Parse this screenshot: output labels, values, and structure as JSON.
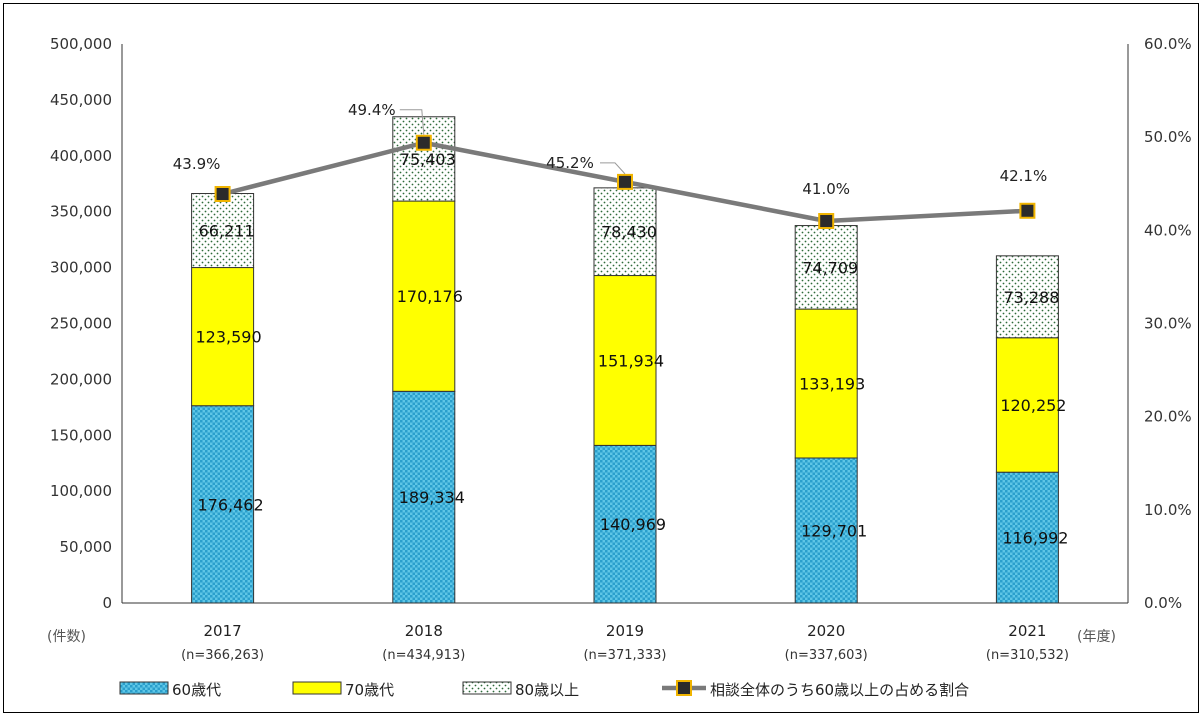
{
  "chart_data": {
    "type": "bar",
    "stacked": true,
    "categories": [
      "2017",
      "2018",
      "2019",
      "2020",
      "2021"
    ],
    "category_n": [
      "(n=366,263)",
      "(n=434,913)",
      "(n=371,333)",
      "(n=337,603)",
      "(n=310,532)"
    ],
    "series": [
      {
        "name": "60歳代",
        "values": [
          176462,
          189334,
          140969,
          129701,
          116992
        ],
        "labels": [
          "176,462",
          "189,334",
          "140,969",
          "129,701",
          "116,992"
        ],
        "color": "#33b8e0",
        "pattern": "checker"
      },
      {
        "name": "70歳代",
        "values": [
          123590,
          170176,
          151934,
          133193,
          120252
        ],
        "labels": [
          "123,590",
          "170,176",
          "151,934",
          "133,193",
          "120,252"
        ],
        "color": "#ffff00"
      },
      {
        "name": "80歳以上",
        "values": [
          66211,
          75403,
          78430,
          74709,
          73288
        ],
        "labels": [
          "66,211",
          "75,403",
          "78,430",
          "74,709",
          "73,288"
        ],
        "color": "#2e6b3a",
        "pattern": "dots"
      }
    ],
    "line_series": {
      "name": "相談全体のうち60歳以上の占める割合",
      "values": [
        43.9,
        49.4,
        45.2,
        41.0,
        42.1
      ],
      "labels": [
        "43.9%",
        "49.4%",
        "45.2%",
        "41.0%",
        "42.1%"
      ],
      "line_color": "#7a7a7a",
      "marker_color": "#2b2b2b",
      "marker_edge": "#f0b400"
    },
    "y_left": {
      "min": 0,
      "max": 500000,
      "step": 50000,
      "ticks": [
        "0",
        "50,000",
        "100,000",
        "150,000",
        "200,000",
        "250,000",
        "300,000",
        "350,000",
        "400,000",
        "450,000",
        "500,000"
      ],
      "unit": "(件数)"
    },
    "y_right": {
      "min": 0,
      "max": 60,
      "step": 10,
      "ticks": [
        "0.0%",
        "10.0%",
        "20.0%",
        "30.0%",
        "40.0%",
        "50.0%",
        "60.0%"
      ]
    },
    "x_unit": "(年度)",
    "grid": false,
    "legend": "bottom"
  }
}
